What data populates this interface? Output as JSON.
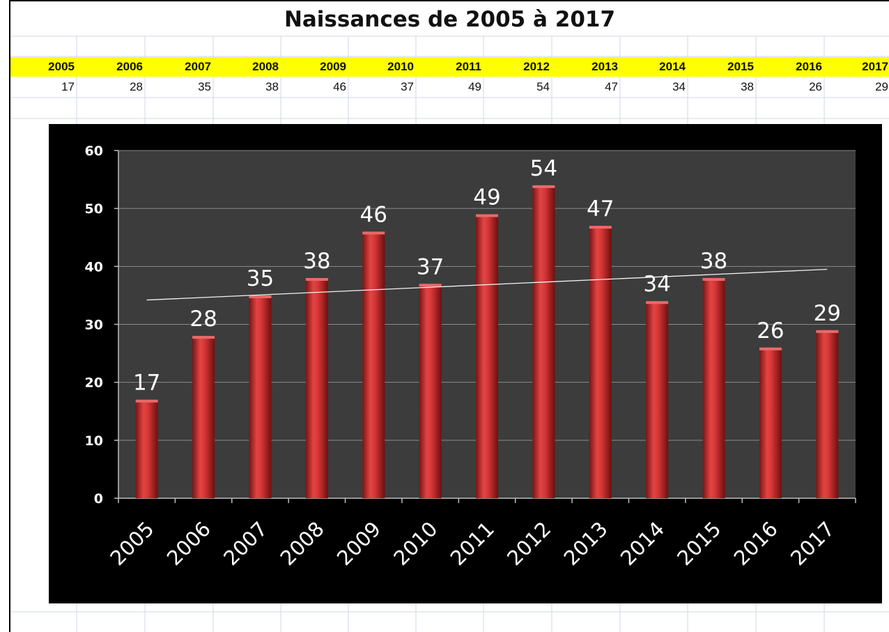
{
  "sheet": {
    "title": "Naissances  de 2005 à 2017",
    "band_color": "#ffff00",
    "years": [
      "2005",
      "2006",
      "2007",
      "2008",
      "2009",
      "2010",
      "2011",
      "2012",
      "2013",
      "2014",
      "2015",
      "2016",
      "2017"
    ],
    "values": [
      "17",
      "28",
      "35",
      "38",
      "46",
      "37",
      "49",
      "54",
      "47",
      "34",
      "38",
      "26",
      "29"
    ]
  },
  "chart_data": {
    "type": "bar",
    "title": "",
    "xlabel": "",
    "ylabel": "",
    "categories": [
      "2005",
      "2006",
      "2007",
      "2008",
      "2009",
      "2010",
      "2011",
      "2012",
      "2013",
      "2014",
      "2015",
      "2016",
      "2017"
    ],
    "values": [
      17,
      28,
      35,
      38,
      46,
      37,
      49,
      54,
      47,
      34,
      38,
      26,
      29
    ],
    "ylim": [
      0,
      60
    ],
    "yticks": [
      0,
      10,
      20,
      30,
      40,
      50,
      60
    ],
    "grid": true,
    "legend": "none",
    "data_labels": true,
    "trendline": {
      "type": "linear",
      "start": 34.2,
      "end": 39.5
    },
    "colors": {
      "bar": "#cc2a2a",
      "plot_background": "#3c3c3c",
      "chart_background": "#000000",
      "gridline": "#8a8a8a",
      "text": "#ffffff"
    }
  }
}
